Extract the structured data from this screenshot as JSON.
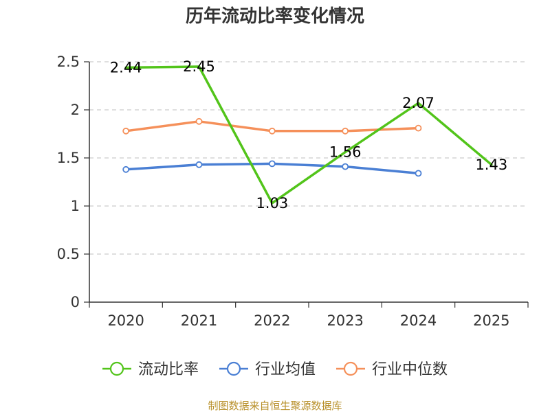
{
  "chart_data": {
    "type": "line",
    "title": "历年流动比率变化情况",
    "xlabel": "",
    "ylabel": "",
    "categories": [
      "2020",
      "2021",
      "2022",
      "2023",
      "2024",
      "2025"
    ],
    "ylim": [
      0,
      2.5
    ],
    "yticks": [
      0,
      0.5,
      1,
      1.5,
      2,
      2.5
    ],
    "ytick_labels": [
      "0",
      "0.5",
      "1",
      "1.5",
      "2",
      "2.5"
    ],
    "grid": true,
    "legend_position": "bottom",
    "series": [
      {
        "name": "流动比率",
        "color": "#52c41a",
        "values": [
          2.44,
          2.45,
          1.03,
          1.56,
          2.07,
          1.43
        ],
        "labels": [
          "2.44",
          "2.45",
          "1.03",
          "1.56",
          "2.07",
          "1.43"
        ],
        "show_markers": false,
        "show_labels": true
      },
      {
        "name": "行业均值",
        "color": "#4a7fd4",
        "values": [
          1.38,
          1.43,
          1.44,
          1.41,
          1.34,
          null
        ],
        "show_markers": true,
        "show_labels": false
      },
      {
        "name": "行业中位数",
        "color": "#f5905a",
        "values": [
          1.78,
          1.88,
          1.78,
          1.78,
          1.81,
          null
        ],
        "show_markers": true,
        "show_labels": false
      }
    ],
    "source": "制图数据来自恒生聚源数据库"
  }
}
